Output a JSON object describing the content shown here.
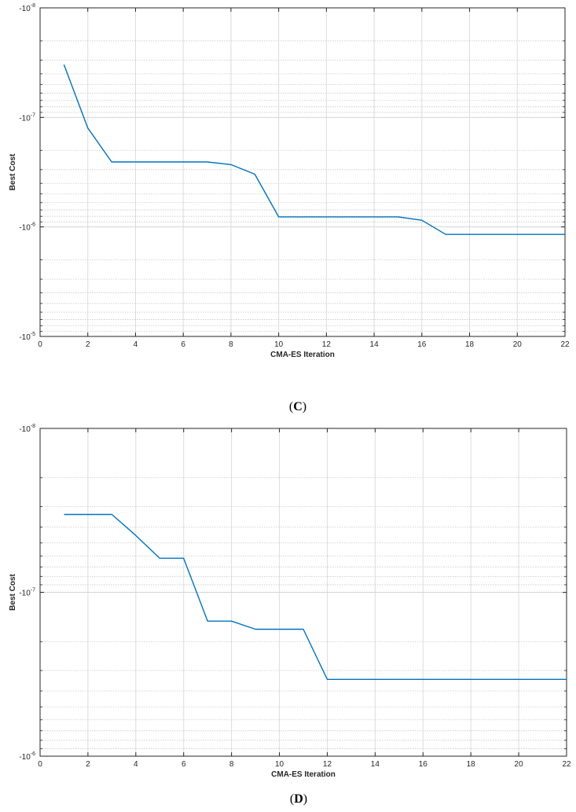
{
  "chart_data": [
    {
      "type": "line",
      "panel_label": "C",
      "xlabel": "CMA-ES Iteration",
      "ylabel": "Best Cost",
      "xlim": [
        0,
        22
      ],
      "xticks": [
        0,
        2,
        4,
        6,
        8,
        10,
        12,
        14,
        16,
        18,
        20,
        22
      ],
      "y_scale": "log (negative values; magnitude increases downward)",
      "ylim": [
        -1e-05,
        -1e-08
      ],
      "yticks": [
        {
          "label": "-10",
          "exp": "-8"
        },
        {
          "label": "-10",
          "exp": "-7"
        },
        {
          "label": "-10",
          "exp": "-6"
        },
        {
          "label": "-10",
          "exp": "-5"
        }
      ],
      "grid": true,
      "color": "#0072BD",
      "x": [
        1,
        2,
        3,
        4,
        5,
        6,
        7,
        8,
        9,
        10,
        11,
        12,
        13,
        14,
        15,
        16,
        17,
        18,
        19,
        20,
        21,
        22
      ],
      "y": [
        -3.3e-08,
        -1.25e-07,
        -2.55e-07,
        -2.55e-07,
        -2.55e-07,
        -2.55e-07,
        -2.55e-07,
        -2.7e-07,
        -3.3e-07,
        -8.1e-07,
        -8.1e-07,
        -8.1e-07,
        -8.1e-07,
        -8.1e-07,
        -8.1e-07,
        -8.7e-07,
        -1.17e-06,
        -1.17e-06,
        -1.17e-06,
        -1.17e-06,
        -1.17e-06,
        -1.17e-06
      ]
    },
    {
      "type": "line",
      "panel_label": "D",
      "xlabel": "CMA-ES Iteration",
      "ylabel": "Best Cost",
      "xlim": [
        0,
        22
      ],
      "xticks": [
        0,
        2,
        4,
        6,
        8,
        10,
        12,
        14,
        16,
        18,
        20,
        22
      ],
      "y_scale": "log (negative values; magnitude increases downward)",
      "ylim": [
        -1e-06,
        -1e-08
      ],
      "yticks": [
        {
          "label": "-10",
          "exp": "-8"
        },
        {
          "label": "-10",
          "exp": "-7"
        },
        {
          "label": "-10",
          "exp": "-6"
        }
      ],
      "grid": true,
      "color": "#0072BD",
      "x": [
        1,
        2,
        3,
        4,
        5,
        6,
        7,
        8,
        9,
        10,
        11,
        12,
        13,
        14,
        15,
        16,
        17,
        18,
        19,
        20,
        21,
        22
      ],
      "y": [
        -3.35e-08,
        -3.35e-08,
        -3.35e-08,
        -4.5e-08,
        -6.2e-08,
        -6.2e-08,
        -1.5e-07,
        -1.5e-07,
        -1.68e-07,
        -1.68e-07,
        -1.68e-07,
        -3.4e-07,
        -3.4e-07,
        -3.4e-07,
        -3.4e-07,
        -3.4e-07,
        -3.4e-07,
        -3.4e-07,
        -3.4e-07,
        -3.4e-07,
        -3.4e-07,
        -3.4e-07
      ]
    }
  ]
}
